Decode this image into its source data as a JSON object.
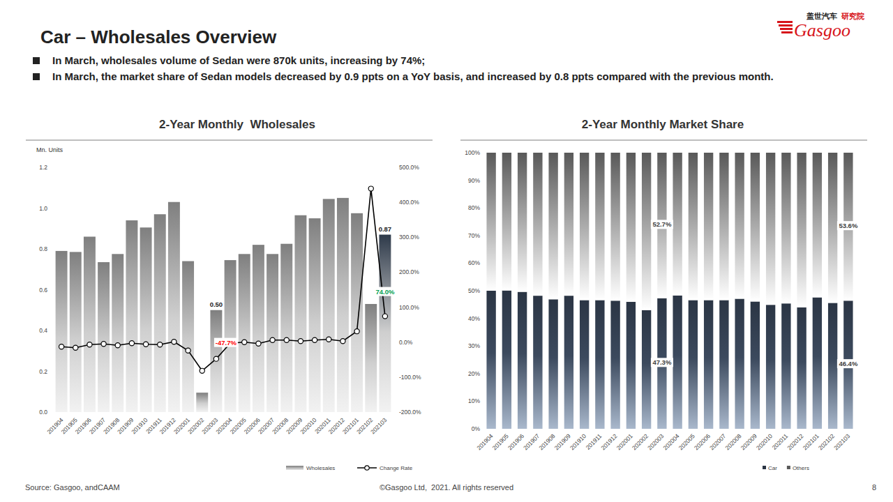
{
  "header": {
    "title": "Car – Wholesales Overview",
    "bullets": [
      "In March, wholesales volume of Sedan were 870k units, increasing by 74%;",
      "In March, the market share of Sedan models decreased by 0.9 ppts on a YoY basis, and increased by 0.8 ppts compared with the previous month."
    ]
  },
  "logo": {
    "cn": "盖世汽车",
    "tag": "研究院",
    "en": "Gasgoo"
  },
  "footer": {
    "source": "Source: Gasgoo, andCAAM",
    "copyright": "©Gasgoo Ltd,  2021. All rights reserved",
    "page": "8"
  },
  "chart_data": [
    {
      "type": "bar",
      "title": "2-Year Monthly  Wholesales",
      "y_label": "Mn. Units",
      "categories": [
        "201904",
        "201905",
        "201906",
        "201907",
        "201908",
        "201909",
        "201910",
        "201911",
        "201912",
        "202001",
        "202002",
        "202003",
        "202004",
        "202005",
        "202006",
        "202007",
        "202008",
        "202009",
        "202010",
        "202011",
        "202012",
        "202101",
        "202102",
        "202103"
      ],
      "ylim": [
        0,
        1.2
      ],
      "yticks": [
        {
          "value": 0,
          "label": "0.0"
        },
        0.2,
        0.4,
        0.6,
        0.8,
        {
          "value": 1,
          "label": "1.0"
        },
        1.2
      ],
      "y2lim": [
        -200,
        500
      ],
      "y2ticks": [
        {
          "value": -200,
          "label": "-200.0%"
        },
        {
          "value": -100,
          "label": "-100.0%"
        },
        {
          "value": 0,
          "label": "0.0%"
        },
        {
          "value": 100,
          "label": "100.0%"
        },
        {
          "value": 200,
          "label": "200.0%"
        },
        {
          "value": 300,
          "label": "300.0%"
        },
        {
          "value": 400,
          "label": "400.0%"
        },
        {
          "value": 500,
          "label": "500.0%"
        }
      ],
      "grid": false,
      "legend": "bottom",
      "series": [
        {
          "name": "Wholesales",
          "type": "bar",
          "color": "#7f7f7f",
          "colors": [
            "#7f7f7f",
            "#7f7f7f",
            "#7f7f7f",
            "#7f7f7f",
            "#7f7f7f",
            "#7f7f7f",
            "#7f7f7f",
            "#7f7f7f",
            "#7f7f7f",
            "#7f7f7f",
            "#7f7f7f",
            "#7f7f7f",
            "#7f7f7f",
            "#7f7f7f",
            "#7f7f7f",
            "#7f7f7f",
            "#7f7f7f",
            "#7f7f7f",
            "#7f7f7f",
            "#7f7f7f",
            "#7f7f7f",
            "#7f7f7f",
            "#7f7f7f",
            "#2e3a4a"
          ],
          "values": [
            0.79,
            0.785,
            0.86,
            0.735,
            0.775,
            0.94,
            0.905,
            0.97,
            1.03,
            0.74,
            0.095,
            0.5,
            0.745,
            0.775,
            0.82,
            0.775,
            0.825,
            0.965,
            0.95,
            1.045,
            1.05,
            0.975,
            0.53,
            0.87
          ],
          "value_labels": [
            null,
            null,
            null,
            null,
            null,
            null,
            null,
            null,
            null,
            null,
            null,
            "0.50",
            null,
            null,
            null,
            null,
            null,
            null,
            null,
            null,
            null,
            null,
            null,
            "0.87"
          ]
        },
        {
          "name": "Change Rate",
          "type": "line",
          "axis": "y2",
          "color": "#000000",
          "marker": "circle",
          "values": [
            -13,
            -16,
            -7,
            -5,
            -9,
            -3,
            -6,
            -7,
            1,
            -24,
            -82,
            -47.7,
            -3,
            0,
            -4,
            6,
            6,
            3,
            6,
            8,
            3,
            31,
            439,
            74
          ],
          "value_labels": [
            null,
            null,
            null,
            null,
            null,
            null,
            null,
            null,
            null,
            null,
            null,
            "-47.7%",
            null,
            null,
            null,
            null,
            null,
            null,
            null,
            null,
            null,
            null,
            null,
            "74.0%"
          ]
        }
      ]
    },
    {
      "type": "bar",
      "stacked": true,
      "title": "2-Year Monthly Market Share",
      "categories": [
        "201904",
        "201905",
        "201906",
        "201907",
        "201908",
        "201909",
        "201910",
        "201911",
        "201912",
        "202001",
        "202002",
        "202003",
        "202004",
        "202005",
        "202006",
        "202007",
        "202008",
        "202009",
        "202010",
        "202011",
        "202012",
        "202101",
        "202102",
        "202103"
      ],
      "ylim": [
        0,
        100
      ],
      "yticks": [
        {
          "value": 0,
          "label": "0%"
        },
        {
          "value": 10,
          "label": "10%"
        },
        {
          "value": 20,
          "label": "20%"
        },
        {
          "value": 30,
          "label": "30%"
        },
        {
          "value": 40,
          "label": "40%"
        },
        {
          "value": 50,
          "label": "50%"
        },
        {
          "value": 60,
          "label": "60%"
        },
        {
          "value": 70,
          "label": "70%"
        },
        {
          "value": 80,
          "label": "80%"
        },
        {
          "value": 90,
          "label": "90%"
        },
        {
          "value": 100,
          "label": "100%"
        }
      ],
      "grid": false,
      "legend": "bottom",
      "series": [
        {
          "name": "Car",
          "color": "#2b3544",
          "values": [
            50.0,
            50.1,
            49.6,
            48.2,
            46.9,
            48.2,
            46.6,
            46.6,
            46.4,
            46.0,
            43.0,
            47.3,
            48.3,
            46.6,
            46.6,
            46.6,
            47.1,
            46.1,
            44.9,
            45.4,
            44.0,
            47.6,
            45.6,
            46.4
          ],
          "value_labels": [
            null,
            null,
            null,
            null,
            null,
            null,
            null,
            null,
            null,
            null,
            null,
            "47.3%",
            null,
            null,
            null,
            null,
            null,
            null,
            null,
            null,
            null,
            null,
            null,
            "46.4%"
          ]
        },
        {
          "name": "Others",
          "color": "#595959",
          "values": [
            50.0,
            49.9,
            50.4,
            51.8,
            53.1,
            51.8,
            53.4,
            53.4,
            53.6,
            54.0,
            57.0,
            52.7,
            51.7,
            53.4,
            53.4,
            53.4,
            52.9,
            53.9,
            55.1,
            54.6,
            56.0,
            52.4,
            54.4,
            53.6
          ],
          "value_labels": [
            null,
            null,
            null,
            null,
            null,
            null,
            null,
            null,
            null,
            null,
            null,
            "52.7%",
            null,
            null,
            null,
            null,
            null,
            null,
            null,
            null,
            null,
            null,
            null,
            "53.6%"
          ]
        }
      ]
    }
  ]
}
